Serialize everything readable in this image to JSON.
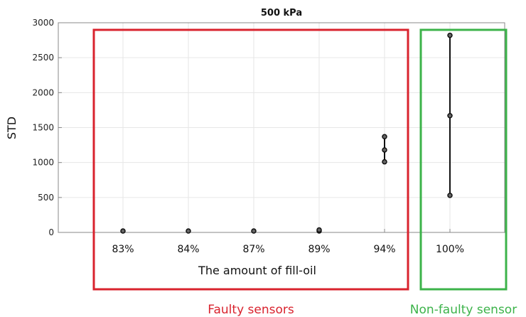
{
  "chart_data": {
    "type": "scatter",
    "title": "500 kPa",
    "xlabel": "The amount of fill-oil",
    "ylabel": "STD",
    "categories": [
      "83%",
      "84%",
      "87%",
      "89%",
      "94%",
      "100%"
    ],
    "ylim": [
      0,
      3000
    ],
    "yticks": [
      0,
      500,
      1000,
      1500,
      2000,
      2500,
      3000
    ],
    "grid": true,
    "series": [
      {
        "points": [
          {
            "category": "83%",
            "values": [
              20
            ]
          },
          {
            "category": "84%",
            "values": [
              20
            ]
          },
          {
            "category": "87%",
            "values": [
              20
            ]
          },
          {
            "category": "89%",
            "values": [
              20,
              35
            ]
          },
          {
            "category": "94%",
            "values": [
              1010,
              1180,
              1370
            ]
          },
          {
            "category": "100%",
            "values": [
              530,
              1670,
              2820
            ]
          }
        ]
      }
    ],
    "groups": [
      {
        "label": "Faulty sensors",
        "categories": [
          "83%",
          "84%",
          "87%",
          "89%",
          "94%"
        ],
        "color": "#d9232e"
      },
      {
        "label": "Non-faulty sensor",
        "categories": [
          "100%"
        ],
        "color": "#3cb34a"
      }
    ]
  }
}
